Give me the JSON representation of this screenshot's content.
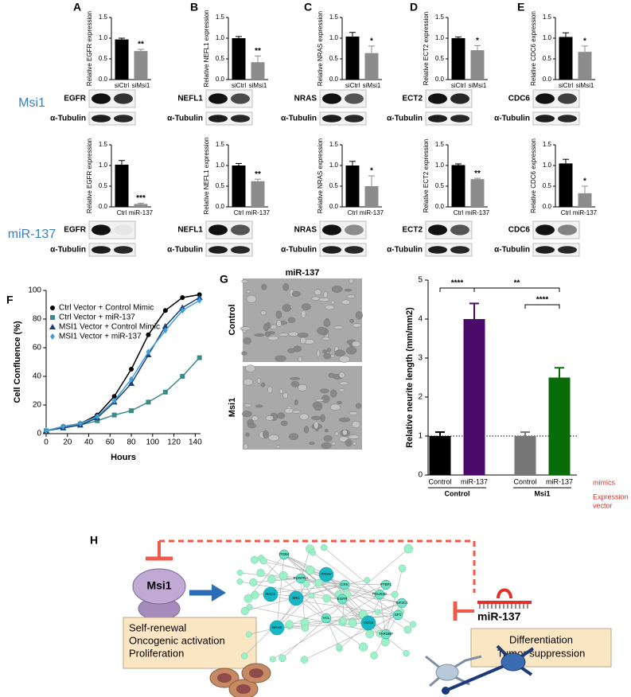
{
  "panel_labels": [
    "A",
    "B",
    "C",
    "D",
    "E",
    "F",
    "G",
    "H"
  ],
  "row_labels": [
    "Msi1",
    "miR-137"
  ],
  "blots": {
    "targets": [
      "EGFR",
      "NEFL1",
      "NRAS",
      "ECT2",
      "CDC6"
    ],
    "loading": "α-Tubulin"
  },
  "chart_data": [
    {
      "type": "bar",
      "ylabel": "Relative EGFR expression",
      "categories": [
        "siCtrl",
        "siMsi1"
      ],
      "values": [
        0.97,
        0.69
      ],
      "errors": [
        0.03,
        0.04
      ],
      "colors": [
        "#000000",
        "#8c8c8c"
      ],
      "ylim": [
        0,
        1.5
      ],
      "yticks": [
        {
          "value": 0,
          "label": "0.0"
        },
        0.5,
        {
          "value": 1,
          "label": "1.0"
        },
        1.5
      ],
      "significance": "**"
    },
    {
      "type": "bar",
      "ylabel": "Relative NEFL1 expression",
      "categories": [
        "siCtrl",
        "siMsi1"
      ],
      "values": [
        1.0,
        0.42
      ],
      "errors": [
        0.04,
        0.15
      ],
      "colors": [
        "#000000",
        "#8c8c8c"
      ],
      "ylim": [
        0,
        1.5
      ],
      "yticks": [
        {
          "value": 0,
          "label": "0.0"
        },
        0.5,
        {
          "value": 1,
          "label": "1.0"
        },
        1.5
      ],
      "significance": "**"
    },
    {
      "type": "bar",
      "ylabel": "Relative NRAS expression",
      "categories": [
        "siCtrl",
        "siMsi1"
      ],
      "values": [
        1.04,
        0.64
      ],
      "errors": [
        0.1,
        0.17
      ],
      "colors": [
        "#000000",
        "#8c8c8c"
      ],
      "ylim": [
        0,
        1.5
      ],
      "yticks": [
        {
          "value": 0,
          "label": "0.0"
        },
        0.5,
        {
          "value": 1,
          "label": "1.0"
        },
        1.5
      ],
      "significance": "*"
    },
    {
      "type": "bar",
      "ylabel": "Relative ECT2 expression",
      "categories": [
        "siCtrl",
        "siMsi1"
      ],
      "values": [
        1.0,
        0.71
      ],
      "errors": [
        0.03,
        0.11
      ],
      "colors": [
        "#000000",
        "#8c8c8c"
      ],
      "ylim": [
        0,
        1.5
      ],
      "yticks": [
        {
          "value": 0,
          "label": "0.0"
        },
        0.5,
        {
          "value": 1,
          "label": "1.0"
        },
        1.5
      ],
      "significance": "*"
    },
    {
      "type": "bar",
      "ylabel": "Relative CDC6 expression",
      "categories": [
        "siCtrl",
        "siMsi1"
      ],
      "values": [
        1.03,
        0.67
      ],
      "errors": [
        0.1,
        0.14
      ],
      "colors": [
        "#000000",
        "#8c8c8c"
      ],
      "ylim": [
        0,
        1.5
      ],
      "yticks": [
        {
          "value": 0,
          "label": "0.0"
        },
        0.5,
        {
          "value": 1,
          "label": "1.0"
        },
        1.5
      ],
      "significance": "*"
    },
    {
      "type": "bar",
      "ylabel": "Relative EGFR expression",
      "categories": [
        "Ctrl",
        "miR-137"
      ],
      "values": [
        1.02,
        0.07
      ],
      "errors": [
        0.1,
        0.02
      ],
      "colors": [
        "#000000",
        "#8c8c8c"
      ],
      "ylim": [
        0,
        1.5
      ],
      "yticks": [
        {
          "value": 0,
          "label": "0.0"
        },
        0.5,
        {
          "value": 1,
          "label": "1.0"
        },
        1.5
      ],
      "significance": "***"
    },
    {
      "type": "bar",
      "ylabel": "Relative NEFL1 expression",
      "categories": [
        "Ctrl",
        "miR-137"
      ],
      "values": [
        1.0,
        0.62
      ],
      "errors": [
        0.05,
        0.05
      ],
      "colors": [
        "#000000",
        "#8c8c8c"
      ],
      "ylim": [
        0,
        1.5
      ],
      "yticks": [
        {
          "value": 0,
          "label": "0.0"
        },
        0.5,
        {
          "value": 1,
          "label": "1.0"
        },
        1.5
      ],
      "significance": "**"
    },
    {
      "type": "bar",
      "ylabel": "Relative NRAS expression",
      "categories": [
        "Ctrl",
        "miR-137"
      ],
      "values": [
        1.0,
        0.5
      ],
      "errors": [
        0.1,
        0.25
      ],
      "colors": [
        "#000000",
        "#8c8c8c"
      ],
      "ylim": [
        0,
        1.5
      ],
      "yticks": [
        {
          "value": 0,
          "label": "0.0"
        },
        0.5,
        {
          "value": 1,
          "label": "1.0"
        },
        1.5
      ],
      "significance": "*"
    },
    {
      "type": "bar",
      "ylabel": "Relative ECT2 expression",
      "categories": [
        "Ctrl",
        "miR-137"
      ],
      "values": [
        1.01,
        0.67
      ],
      "errors": [
        0.03,
        0.02
      ],
      "colors": [
        "#000000",
        "#8c8c8c"
      ],
      "ylim": [
        0,
        1.5
      ],
      "yticks": [
        {
          "value": 0,
          "label": "0.0"
        },
        0.5,
        {
          "value": 1,
          "label": "1.0"
        },
        1.5
      ],
      "significance": "**"
    },
    {
      "type": "bar",
      "ylabel": "Relative CDC6 expression",
      "categories": [
        "Ctrl",
        "miR-137"
      ],
      "values": [
        1.05,
        0.33
      ],
      "errors": [
        0.1,
        0.17
      ],
      "colors": [
        "#000000",
        "#8c8c8c"
      ],
      "ylim": [
        0,
        1.5
      ],
      "yticks": [
        {
          "value": 0,
          "label": "0.0"
        },
        0.5,
        {
          "value": 1,
          "label": "1.0"
        },
        1.5
      ],
      "significance": "*"
    },
    {
      "type": "line",
      "xlabel": "Hours",
      "ylabel": "Cell Confluence (%)",
      "x": [
        0,
        16,
        32,
        48,
        64,
        80,
        96,
        112,
        128,
        144
      ],
      "series": [
        {
          "name": "Ctrl Vector + Control Mimic",
          "color": "#000000",
          "marker": "circle",
          "values": [
            2,
            5,
            7,
            13,
            26,
            45,
            69,
            86,
            95,
            97
          ]
        },
        {
          "name": "Ctrl Vector + miR-137",
          "color": "#3a8a8a",
          "marker": "square",
          "values": [
            2,
            4,
            6,
            9,
            13,
            16,
            22,
            29,
            40,
            53
          ]
        },
        {
          "name": "MSI1 Vector + Control Mimic",
          "color": "#1f3f7a",
          "marker": "triangle",
          "values": [
            2,
            4,
            6,
            11,
            22,
            35,
            55,
            75,
            88,
            95
          ]
        },
        {
          "name": "MSI1 Vector + miR-137",
          "color": "#3fa0d8",
          "marker": "diamond",
          "values": [
            2,
            5,
            7,
            12,
            23,
            38,
            57,
            72,
            86,
            93
          ]
        }
      ],
      "xlim": [
        0,
        145
      ],
      "xticks": [
        0,
        20,
        40,
        60,
        80,
        100,
        120,
        140
      ],
      "ylim": [
        0,
        100
      ],
      "yticks": [
        0,
        20,
        40,
        60,
        80,
        100
      ],
      "legend": "upper-left"
    },
    {
      "type": "bar",
      "ylabel": "Relative neurite length (mm/mm2)",
      "categories": [
        "Control",
        "miR-137",
        "Control",
        "miR-137"
      ],
      "groups": [
        "Control",
        "Msi1"
      ],
      "values": [
        1.0,
        4.0,
        1.0,
        2.5
      ],
      "errors": [
        0.1,
        0.4,
        0.1,
        0.25
      ],
      "colors": [
        "#000000",
        "#4b0b6b",
        "#777777",
        "#0a6b0a"
      ],
      "ylim": [
        0,
        5
      ],
      "yticks": [
        0,
        1,
        2,
        3,
        4,
        5
      ],
      "reference_line": 1,
      "significance": [
        "****",
        "**",
        "****"
      ],
      "annotations": [
        "mimics",
        "Expression",
        "vector"
      ]
    }
  ],
  "micrographs": {
    "title": "miR-137",
    "rows": [
      "Control",
      "Msi1"
    ]
  },
  "diagram": {
    "source": "Msi1",
    "source_functions": [
      "Self-renewal",
      "Oncogenic activation",
      "Proliferation"
    ],
    "regulator": "miR-137",
    "regulator_functions": [
      "Differentiation",
      "Tumor suppression"
    ],
    "network_nodes": [
      "ITGB4",
      "ITGAV",
      "PDGFRA",
      "RAC1",
      "SRC",
      "CRK",
      "EGFR",
      "NRAS",
      "VCL",
      "CDC6",
      "POLR2D",
      "EIF2C1",
      "SP1",
      "PTBP1",
      "TARDBP"
    ]
  }
}
